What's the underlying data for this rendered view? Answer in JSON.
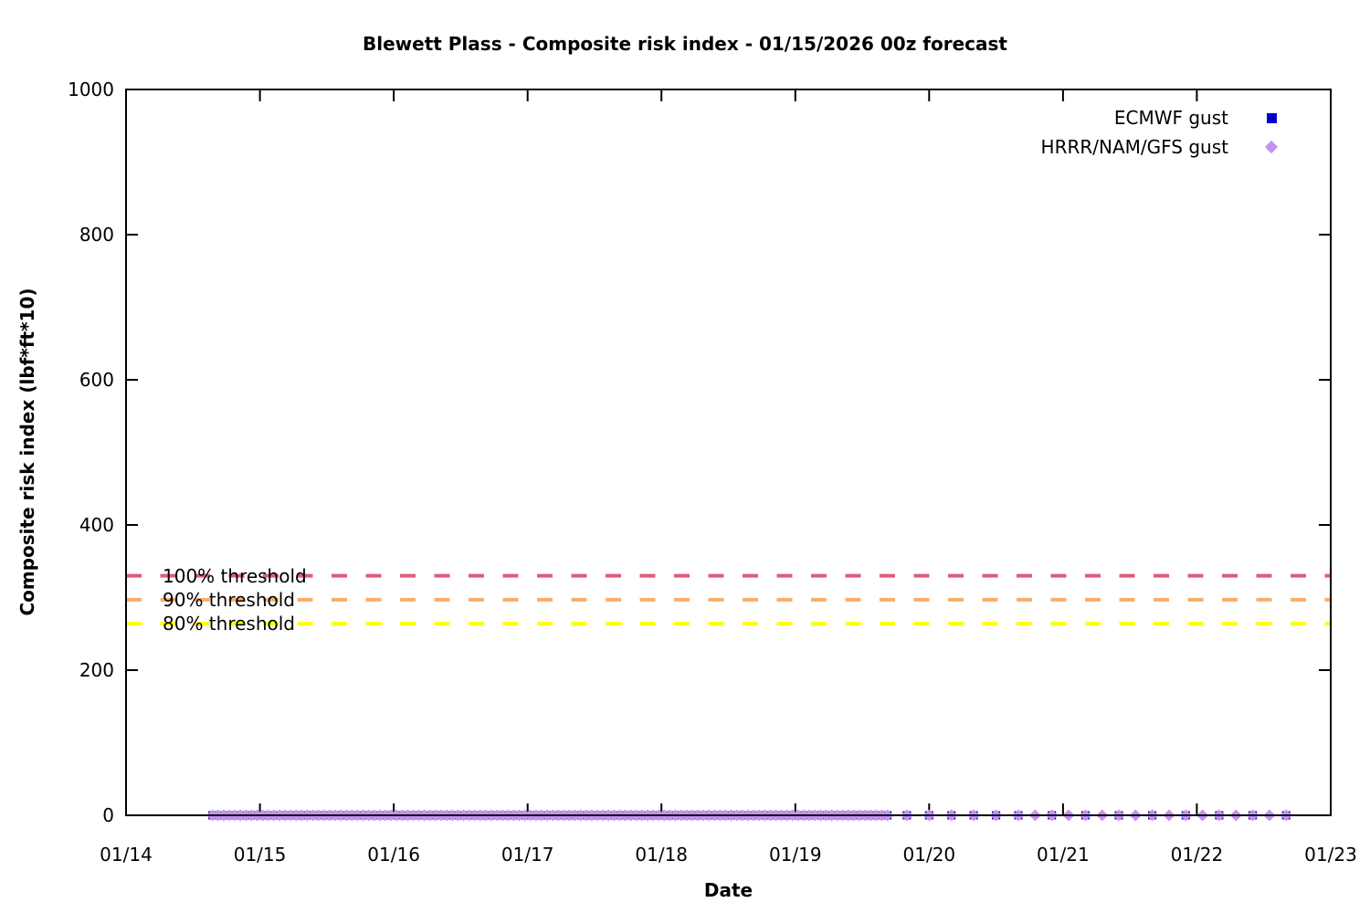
{
  "chart": {
    "title": "Blewett Plass - Composite risk index - 01/15/2026 00z forecast"
  },
  "chart_data": {
    "type": "scatter",
    "title": "Blewett Plass - Composite risk index - 01/15/2026 00z forecast",
    "xlabel": "Date",
    "ylabel": "Composite risk index (lbf*ft*10)",
    "x_tick_labels": [
      "01/14",
      "01/15",
      "01/16",
      "01/17",
      "01/18",
      "01/19",
      "01/20",
      "01/21",
      "01/22",
      "01/23"
    ],
    "x_range_days": [
      0,
      9
    ],
    "y_ticks": [
      0,
      200,
      400,
      600,
      800,
      1000
    ],
    "ylim": [
      0,
      1000
    ],
    "grid": false,
    "legend_position": "inside-top-right",
    "border_color": "#000000",
    "thresholds": [
      {
        "label": "100% threshold",
        "value": 330,
        "color": "#e05c78",
        "style": "dashed"
      },
      {
        "label": "90% threshold",
        "value": 297,
        "color": "#f8ae6c",
        "style": "dashed"
      },
      {
        "label": "80% threshold",
        "value": 264,
        "color": "#ffff00",
        "style": "dashed"
      }
    ],
    "series": [
      {
        "name": "ECMWF gust",
        "marker": "square",
        "color": "#0000d0",
        "y_value": 0,
        "segments": [
          {
            "start_day": 0.646,
            "end_day": 5.708,
            "step_days": 0.0416667
          },
          {
            "start_day": 5.833,
            "end_day": 6.667,
            "step_days": 0.1666667
          },
          {
            "start_day": 6.917,
            "end_day": 8.667,
            "step_days": 0.25
          }
        ]
      },
      {
        "name": "HRRR/NAM/GFS gust",
        "marker": "diamond",
        "color": "#c592f0",
        "y_value": 0,
        "segments": [
          {
            "start_day": 0.646,
            "end_day": 5.708,
            "step_days": 0.0416667
          },
          {
            "start_day": 5.833,
            "end_day": 6.667,
            "step_days": 0.1666667
          },
          {
            "start_day": 6.792,
            "end_day": 8.667,
            "step_days": 0.125
          }
        ]
      }
    ]
  }
}
